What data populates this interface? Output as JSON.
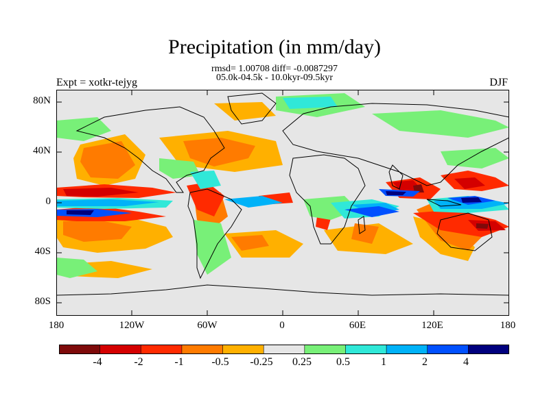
{
  "title": "Precipitation (in mm/day)",
  "subtitle_line1": "rmsd= 1.00708 diff= -0.0087297",
  "subtitle_line2": "05.0k-04.5k - 10.0kyr-09.5kyr",
  "left_label": "Expt = xotkr-tejyg",
  "right_label": "DJF",
  "lat_ticks": [
    "80N",
    "40N",
    "0",
    "40S",
    "80S"
  ],
  "lon_ticks": [
    "180",
    "120W",
    "60W",
    "0",
    "60E",
    "120E",
    "180"
  ],
  "colorbar": {
    "labels": [
      "-4",
      "-2",
      "-1",
      "-0.5",
      "-0.25",
      "0.25",
      "0.5",
      "1",
      "2",
      "4"
    ],
    "colors": [
      "#7e0a0a",
      "#d40000",
      "#ff2a00",
      "#ff7b00",
      "#ffb000",
      "#e6e6e6",
      "#78f078",
      "#30e8d8",
      "#00b2f8",
      "#0050ff",
      "#00007e"
    ]
  },
  "colors": {
    "land_mask": "#e6e6e6",
    "coast": "#000000"
  }
}
